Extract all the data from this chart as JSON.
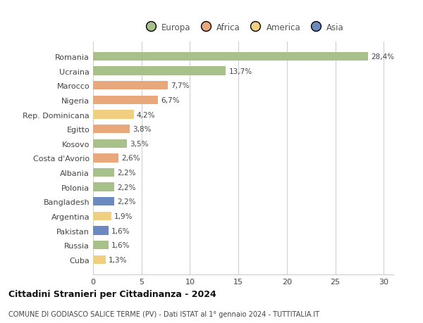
{
  "categories": [
    "Romania",
    "Ucraina",
    "Marocco",
    "Nigeria",
    "Rep. Dominicana",
    "Egitto",
    "Kosovo",
    "Costa d'Avorio",
    "Albania",
    "Polonia",
    "Bangladesh",
    "Argentina",
    "Pakistan",
    "Russia",
    "Cuba"
  ],
  "values": [
    28.4,
    13.7,
    7.7,
    6.7,
    4.2,
    3.8,
    3.5,
    2.6,
    2.2,
    2.2,
    2.2,
    1.9,
    1.6,
    1.6,
    1.3
  ],
  "labels": [
    "28,4%",
    "13,7%",
    "7,7%",
    "6,7%",
    "4,2%",
    "3,8%",
    "3,5%",
    "2,6%",
    "2,2%",
    "2,2%",
    "2,2%",
    "1,9%",
    "1,6%",
    "1,6%",
    "1,3%"
  ],
  "colors": [
    "#a8c08a",
    "#a8c08a",
    "#e8a87c",
    "#e8a87c",
    "#f0d080",
    "#e8a87c",
    "#a8c08a",
    "#e8a87c",
    "#a8c08a",
    "#a8c08a",
    "#6b8abf",
    "#f0d080",
    "#6b8abf",
    "#a8c08a",
    "#f0d080"
  ],
  "legend": [
    {
      "label": "Europa",
      "color": "#a8c08a"
    },
    {
      "label": "Africa",
      "color": "#e8a87c"
    },
    {
      "label": "America",
      "color": "#f0d080"
    },
    {
      "label": "Asia",
      "color": "#6b8abf"
    }
  ],
  "xlim": [
    0,
    31
  ],
  "xticks": [
    0,
    5,
    10,
    15,
    20,
    25,
    30
  ],
  "title": "Cittadini Stranieri per Cittadinanza - 2024",
  "subtitle": "COMUNE DI GODIASCO SALICE TERME (PV) - Dati ISTAT al 1° gennaio 2024 - TUTTITALIA.IT",
  "background_color": "#ffffff",
  "grid_color": "#cccccc"
}
